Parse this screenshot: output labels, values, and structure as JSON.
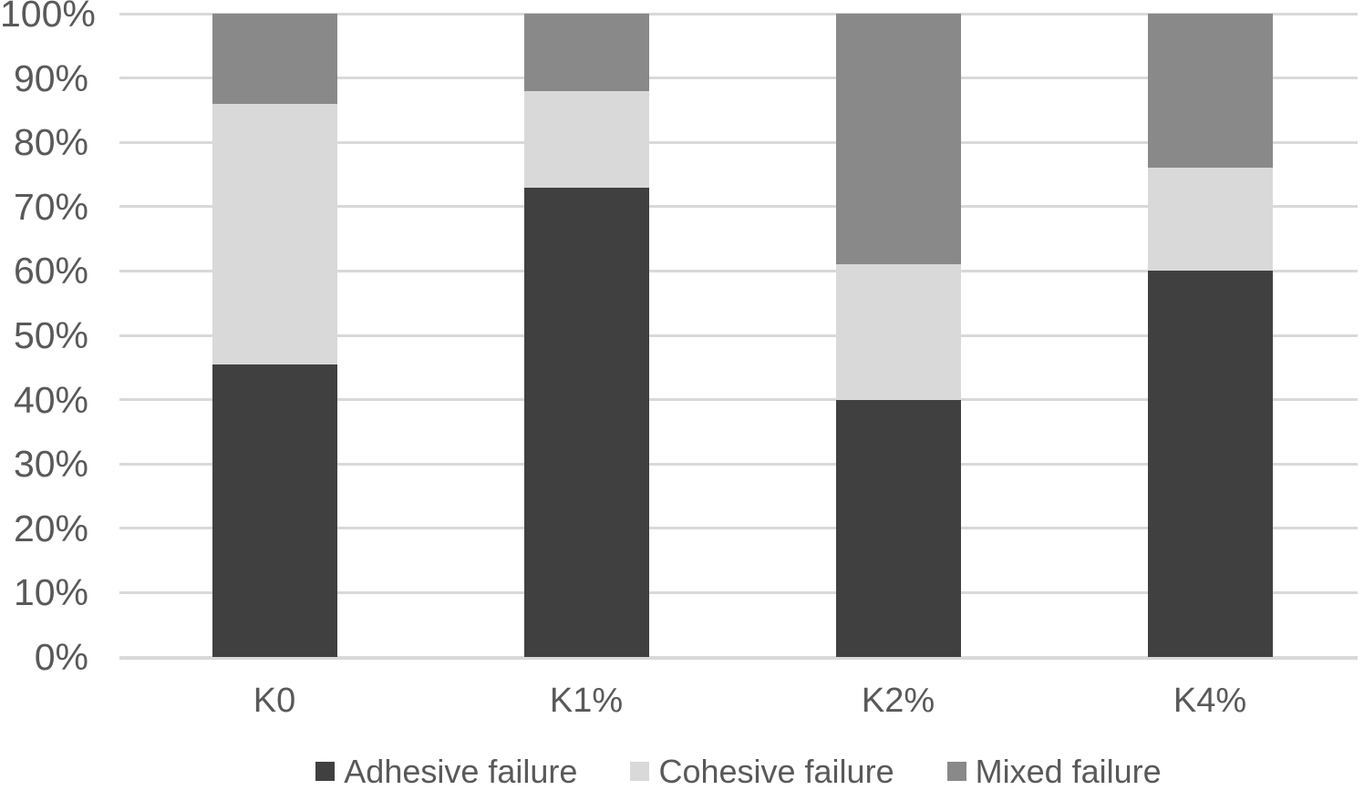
{
  "chart_data": {
    "type": "bar",
    "subtype": "stacked-100",
    "title": "",
    "xlabel": "",
    "ylabel": "",
    "categories": [
      "K0",
      "K1%",
      "K2%",
      "K4%"
    ],
    "series": [
      {
        "name": "Adhesive failure",
        "color": "#404040",
        "values": [
          45.5,
          73,
          40,
          60
        ]
      },
      {
        "name": "Cohesive failure",
        "color": "#D9D9D9",
        "values": [
          40.5,
          15,
          21,
          16
        ]
      },
      {
        "name": "Mixed failure",
        "color": "#898989",
        "values": [
          14,
          12,
          39,
          24
        ]
      }
    ],
    "ylim": [
      0,
      100
    ],
    "ytick_step": 10,
    "ytick_labels": [
      "0%",
      "10%",
      "20%",
      "30%",
      "40%",
      "50%",
      "60%",
      "70%",
      "80%",
      "90%",
      "100%"
    ],
    "grid": "horizontal-on",
    "legend_position": "bottom"
  },
  "colors": {
    "gridline": "#D9D9D9",
    "axis_text": "#595959",
    "background": "#FFFFFF"
  }
}
